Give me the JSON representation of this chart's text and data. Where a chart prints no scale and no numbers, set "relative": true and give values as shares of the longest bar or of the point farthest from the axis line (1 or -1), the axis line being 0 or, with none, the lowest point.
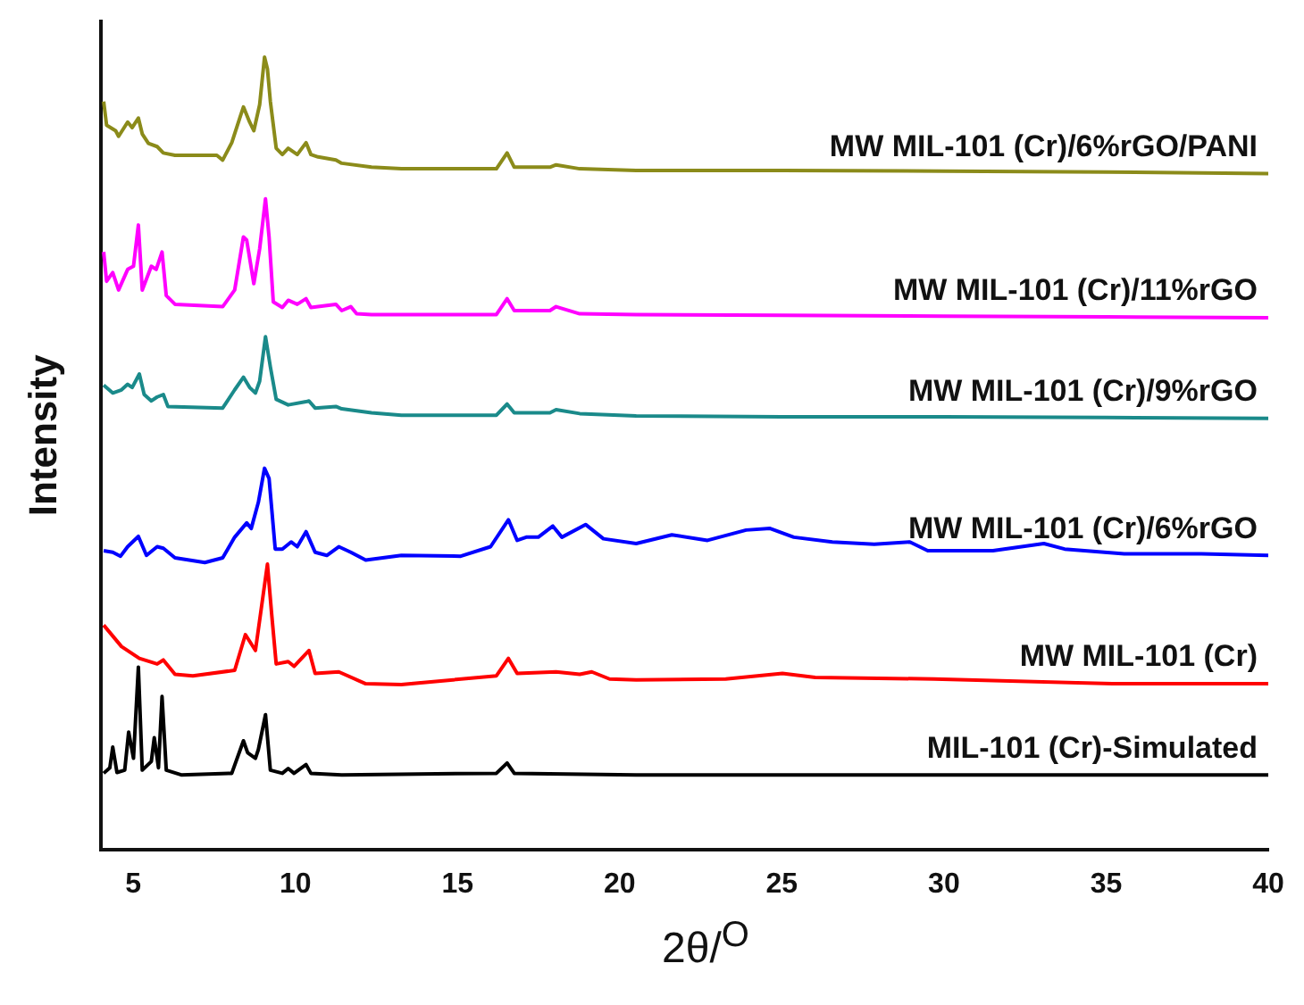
{
  "chart_data": {
    "type": "line",
    "relative": true,
    "xlabel": "2θ/$^{O}$",
    "ylabel": "Intensity",
    "xlim": [
      4,
      40
    ],
    "xticks": [
      5,
      10,
      15,
      20,
      25,
      30,
      35,
      40
    ],
    "grid": false,
    "legend": false,
    "series": [
      {
        "name": "MW MIL-101 (Cr)/6%rGO/PANI",
        "color": "#8b8b1a",
        "x": [
          4.09,
          4.18,
          4.46,
          4.55,
          4.83,
          4.97,
          5.16,
          5.28,
          5.47,
          5.74,
          5.93,
          6.29,
          7.58,
          7.76,
          8.04,
          8.31,
          8.4,
          8.59,
          8.72,
          8.9,
          9.05,
          9.14,
          9.23,
          9.41,
          9.6,
          9.78,
          10.06,
          10.33,
          10.48,
          10.7,
          11.25,
          11.43,
          12.35,
          13.27,
          16.2,
          16.53,
          16.75,
          17.85,
          18.04,
          18.77,
          20.51,
          25,
          30,
          35,
          40
        ],
        "values": [
          0.944,
          0.914,
          0.907,
          0.9,
          0.918,
          0.911,
          0.923,
          0.903,
          0.891,
          0.887,
          0.879,
          0.876,
          0.876,
          0.87,
          0.892,
          0.926,
          0.937,
          0.918,
          0.907,
          0.94,
          1.0,
          0.985,
          0.944,
          0.885,
          0.877,
          0.885,
          0.877,
          0.892,
          0.877,
          0.874,
          0.87,
          0.866,
          0.861,
          0.859,
          0.859,
          0.879,
          0.861,
          0.861,
          0.864,
          0.859,
          0.857,
          0.857,
          0.856,
          0.855,
          0.853
        ]
      },
      {
        "name": "MW MIL-101 (Cr)/11%rGO",
        "color": "#ff00ff",
        "x": [
          4.09,
          4.18,
          4.37,
          4.55,
          4.83,
          5.01,
          5.16,
          5.28,
          5.56,
          5.71,
          5.89,
          6.02,
          6.29,
          7.76,
          8.13,
          8.4,
          8.5,
          8.72,
          8.9,
          9.08,
          9.19,
          9.32,
          9.6,
          9.78,
          10.06,
          10.33,
          10.48,
          11.25,
          11.43,
          11.71,
          11.89,
          12.35,
          16.2,
          16.53,
          16.75,
          17.85,
          18.04,
          18.77,
          20.51,
          25,
          30,
          35,
          40
        ],
        "values": [
          0.754,
          0.717,
          0.728,
          0.706,
          0.732,
          0.736,
          0.788,
          0.706,
          0.736,
          0.732,
          0.754,
          0.699,
          0.688,
          0.685,
          0.706,
          0.773,
          0.769,
          0.714,
          0.758,
          0.821,
          0.773,
          0.691,
          0.684,
          0.693,
          0.688,
          0.695,
          0.684,
          0.688,
          0.68,
          0.685,
          0.676,
          0.675,
          0.675,
          0.695,
          0.68,
          0.68,
          0.685,
          0.676,
          0.675,
          0.674,
          0.673,
          0.672,
          0.671
        ]
      },
      {
        "name": "MW MIL-101 (Cr)/9%rGO",
        "color": "#1a8a8a",
        "x": [
          4.09,
          4.37,
          4.64,
          4.83,
          4.97,
          5.19,
          5.34,
          5.56,
          5.74,
          5.93,
          6.07,
          7.76,
          8.13,
          8.4,
          8.59,
          8.77,
          8.9,
          9.08,
          9.23,
          9.41,
          9.78,
          10.33,
          10.42,
          10.61,
          11.25,
          11.43,
          12.35,
          13.27,
          16.2,
          16.53,
          16.75,
          17.85,
          18.04,
          18.77,
          20.51,
          25,
          30,
          35,
          40
        ],
        "values": [
          0.586,
          0.576,
          0.58,
          0.587,
          0.583,
          0.6,
          0.574,
          0.566,
          0.571,
          0.574,
          0.559,
          0.557,
          0.58,
          0.596,
          0.583,
          0.576,
          0.591,
          0.647,
          0.609,
          0.568,
          0.561,
          0.565,
          0.566,
          0.557,
          0.559,
          0.556,
          0.551,
          0.548,
          0.548,
          0.562,
          0.551,
          0.551,
          0.555,
          0.55,
          0.547,
          0.546,
          0.546,
          0.545,
          0.544
        ]
      },
      {
        "name": "MW MIL-101 (Cr)/6%rGO",
        "color": "#0000ff",
        "x": [
          4.09,
          4.37,
          4.61,
          4.83,
          5.16,
          5.41,
          5.74,
          5.93,
          6.29,
          7.21,
          7.76,
          8.13,
          8.5,
          8.64,
          8.86,
          9.05,
          9.19,
          9.38,
          9.6,
          9.87,
          10.06,
          10.33,
          10.61,
          10.97,
          11.34,
          11.71,
          12.17,
          13.27,
          15.1,
          16.02,
          16.57,
          16.84,
          17.12,
          17.49,
          17.94,
          18.22,
          18.95,
          19.5,
          20.51,
          21.61,
          22.71,
          23.9,
          24.64,
          25.37,
          26.56,
          27.85,
          28.95,
          29.5,
          31.51,
          33.08,
          33.72,
          35.56,
          37.94,
          40
        ],
        "values": [
          0.377,
          0.375,
          0.37,
          0.382,
          0.395,
          0.371,
          0.382,
          0.38,
          0.368,
          0.362,
          0.368,
          0.394,
          0.412,
          0.405,
          0.438,
          0.481,
          0.468,
          0.379,
          0.379,
          0.388,
          0.382,
          0.401,
          0.375,
          0.371,
          0.382,
          0.375,
          0.365,
          0.371,
          0.37,
          0.382,
          0.416,
          0.39,
          0.394,
          0.394,
          0.408,
          0.394,
          0.41,
          0.392,
          0.386,
          0.397,
          0.39,
          0.403,
          0.405,
          0.394,
          0.388,
          0.385,
          0.388,
          0.377,
          0.377,
          0.386,
          0.379,
          0.373,
          0.373,
          0.371
        ]
      },
      {
        "name": "MW MIL-101 (Cr)",
        "color": "#ff0000",
        "x": [
          4.09,
          4.64,
          5.19,
          5.74,
          5.93,
          6.29,
          6.84,
          8.13,
          8.46,
          8.77,
          8.95,
          9.14,
          9.27,
          9.41,
          9.78,
          9.96,
          10.42,
          10.61,
          11.34,
          12.17,
          13.27,
          16.2,
          16.57,
          16.84,
          18.04,
          18.77,
          19.14,
          19.69,
          20.51,
          23.27,
          25.02,
          26.03,
          29.69,
          35.19,
          40
        ],
        "values": [
          0.283,
          0.256,
          0.241,
          0.234,
          0.239,
          0.221,
          0.219,
          0.226,
          0.271,
          0.251,
          0.304,
          0.36,
          0.297,
          0.234,
          0.237,
          0.231,
          0.251,
          0.222,
          0.224,
          0.209,
          0.208,
          0.219,
          0.241,
          0.222,
          0.224,
          0.221,
          0.224,
          0.215,
          0.214,
          0.215,
          0.222,
          0.217,
          0.215,
          0.209,
          0.209
        ]
      },
      {
        "name": "MIL-101 (Cr)-Simulated",
        "color": "#000000",
        "x": [
          4.09,
          4.28,
          4.37,
          4.5,
          4.74,
          4.86,
          5.01,
          5.16,
          5.28,
          5.56,
          5.65,
          5.78,
          5.89,
          6.02,
          6.48,
          8.04,
          8.4,
          8.53,
          8.77,
          8.86,
          9.08,
          9.23,
          9.6,
          9.78,
          9.96,
          10.33,
          10.48,
          11.43,
          16.2,
          16.53,
          16.75,
          20.51,
          30,
          40
        ],
        "values": [
          0.096,
          0.103,
          0.129,
          0.097,
          0.1,
          0.148,
          0.115,
          0.23,
          0.1,
          0.111,
          0.141,
          0.103,
          0.193,
          0.1,
          0.094,
          0.096,
          0.137,
          0.122,
          0.115,
          0.126,
          0.17,
          0.1,
          0.096,
          0.102,
          0.096,
          0.107,
          0.096,
          0.094,
          0.096,
          0.109,
          0.096,
          0.094,
          0.094,
          0.094
        ]
      }
    ]
  }
}
